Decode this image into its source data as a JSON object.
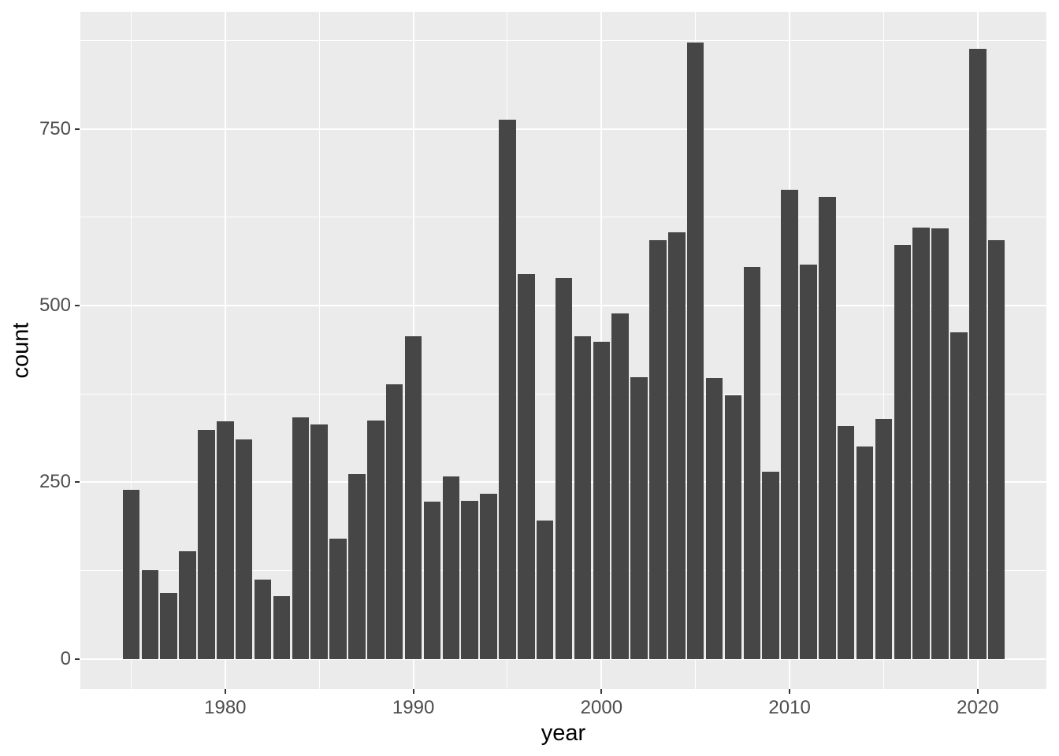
{
  "chart_data": {
    "type": "bar",
    "title": "",
    "xlabel": "year",
    "ylabel": "count",
    "x": [
      1975,
      1976,
      1977,
      1978,
      1979,
      1980,
      1981,
      1982,
      1983,
      1984,
      1985,
      1986,
      1987,
      1988,
      1989,
      1990,
      1991,
      1992,
      1993,
      1994,
      1995,
      1996,
      1997,
      1998,
      1999,
      2000,
      2001,
      2002,
      2003,
      2004,
      2005,
      2006,
      2007,
      2008,
      2009,
      2010,
      2011,
      2012,
      2013,
      2014,
      2015,
      2016,
      2017,
      2018,
      2019,
      2020,
      2021
    ],
    "values": [
      239,
      126,
      93,
      152,
      324,
      336,
      311,
      112,
      89,
      342,
      332,
      170,
      261,
      337,
      388,
      457,
      222,
      258,
      224,
      234,
      763,
      544,
      196,
      539,
      456,
      449,
      489,
      399,
      592,
      604,
      872,
      398,
      373,
      555,
      265,
      664,
      558,
      654,
      330,
      301,
      339,
      586,
      610,
      609,
      462,
      863,
      592
    ],
    "bar_width_years": 0.9,
    "x_ticks": [
      1980,
      1990,
      2000,
      2010,
      2020
    ],
    "y_ticks": [
      0,
      250,
      500,
      750
    ],
    "x_minor_gridlines": [
      1975,
      1985,
      1995,
      2005,
      2015
    ],
    "y_minor_gridlines": [
      125,
      375,
      625,
      875
    ],
    "xlim": [
      1972.3,
      2023.65
    ],
    "ylim": [
      -42.7,
      915.6
    ],
    "grid": "major-and-minor-white",
    "legend": "none",
    "colors": {
      "bar": "#464646",
      "panel_bg": "#EBEBEB",
      "gridline": "#FFFFFF",
      "tick_label": "#4D4D4D",
      "axis_title": "#000000",
      "tick_mark": "#333333"
    }
  }
}
